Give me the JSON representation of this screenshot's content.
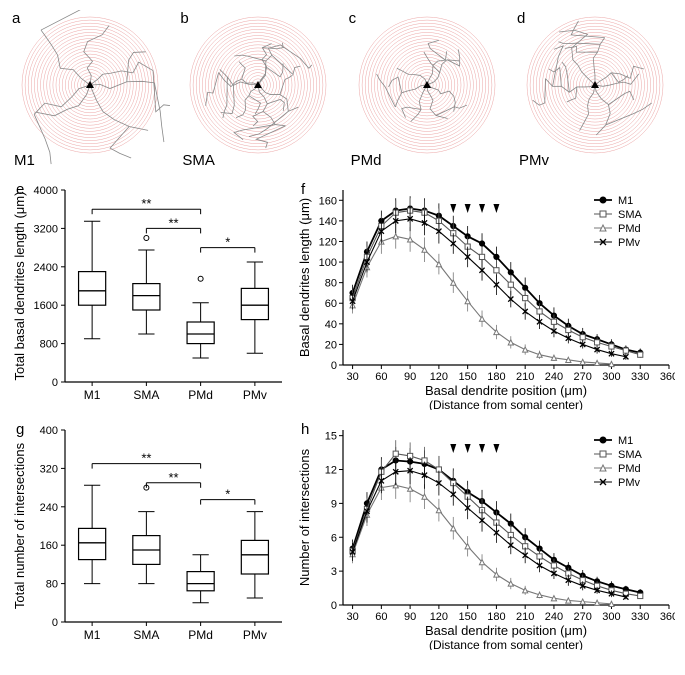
{
  "colors": {
    "background": "#ffffff",
    "sholl_circle": "#f4b5b5",
    "sholl_circle_stroke": "#e99a9a",
    "dendrite": "#888888",
    "soma": "#000000",
    "axis": "#000000",
    "box_stroke": "#000000",
    "outlier": "#000000",
    "sig_bar": "#000000",
    "series": {
      "M1": "#000000",
      "SMA": "#555555",
      "PMd": "#777777",
      "PMv": "#000000"
    }
  },
  "top_panels": [
    {
      "letter": "a",
      "label": "M1",
      "n_rings": 22,
      "dendrite_reach": 0.95
    },
    {
      "letter": "b",
      "label": "SMA",
      "n_rings": 22,
      "dendrite_reach": 0.65
    },
    {
      "letter": "c",
      "label": "PMd",
      "n_rings": 22,
      "dendrite_reach": 0.55
    },
    {
      "letter": "d",
      "label": "PMv",
      "n_rings": 22,
      "dendrite_reach": 0.7
    }
  ],
  "boxplot_e": {
    "letter": "e",
    "ylabel": "Total basal dendrites length (μm)",
    "ylim": [
      0,
      4000
    ],
    "yticks": [
      0,
      800,
      1600,
      2400,
      3200,
      4000
    ],
    "categories": [
      "M1",
      "SMA",
      "PMd",
      "PMv"
    ],
    "boxes": [
      {
        "q1": 1600,
        "median": 1900,
        "q3": 2300,
        "whisker_lo": 900,
        "whisker_hi": 3350,
        "outliers": []
      },
      {
        "q1": 1500,
        "median": 1800,
        "q3": 2050,
        "whisker_lo": 1000,
        "whisker_hi": 2750,
        "outliers": [
          3000
        ]
      },
      {
        "q1": 800,
        "median": 1000,
        "q3": 1250,
        "whisker_lo": 500,
        "whisker_hi": 1650,
        "outliers": [
          2150
        ]
      },
      {
        "q1": 1300,
        "median": 1600,
        "q3": 1950,
        "whisker_lo": 600,
        "whisker_hi": 2500,
        "outliers": []
      }
    ],
    "sig": [
      {
        "i": 0,
        "j": 2,
        "y": 3600,
        "label": "**"
      },
      {
        "i": 1,
        "j": 2,
        "y": 3200,
        "label": "**"
      },
      {
        "i": 2,
        "j": 3,
        "y": 2800,
        "label": "*"
      }
    ]
  },
  "boxplot_g": {
    "letter": "g",
    "ylabel": "Total number of intersections",
    "ylim": [
      0,
      400
    ],
    "yticks": [
      0,
      80,
      160,
      240,
      320,
      400
    ],
    "categories": [
      "M1",
      "SMA",
      "PMd",
      "PMv"
    ],
    "boxes": [
      {
        "q1": 130,
        "median": 165,
        "q3": 195,
        "whisker_lo": 80,
        "whisker_hi": 285,
        "outliers": []
      },
      {
        "q1": 120,
        "median": 150,
        "q3": 180,
        "whisker_lo": 80,
        "whisker_hi": 230,
        "outliers": [
          280
        ]
      },
      {
        "q1": 65,
        "median": 80,
        "q3": 105,
        "whisker_lo": 40,
        "whisker_hi": 140,
        "outliers": []
      },
      {
        "q1": 100,
        "median": 140,
        "q3": 170,
        "whisker_lo": 50,
        "whisker_hi": 230,
        "outliers": []
      }
    ],
    "sig": [
      {
        "i": 0,
        "j": 2,
        "y": 330,
        "label": "**"
      },
      {
        "i": 1,
        "j": 2,
        "y": 290,
        "label": "**"
      },
      {
        "i": 2,
        "j": 3,
        "y": 255,
        "label": "*"
      }
    ]
  },
  "line_f": {
    "letter": "f",
    "ylabel": "Basal dendrites length (μm)",
    "xlabel1": "Basal dendrite position (μm)",
    "xlabel2": "(Distance from somal center)",
    "xlim": [
      20,
      360
    ],
    "xticks": [
      30,
      60,
      90,
      120,
      150,
      180,
      210,
      240,
      270,
      300,
      330,
      360
    ],
    "ylim": [
      0,
      170
    ],
    "yticks": [
      0,
      20,
      40,
      60,
      80,
      100,
      120,
      140,
      160
    ],
    "arrows_x": [
      135,
      150,
      165,
      180
    ],
    "legend": [
      "M1",
      "SMA",
      "PMd",
      "PMv"
    ],
    "series": {
      "M1": {
        "x": [
          30,
          45,
          60,
          75,
          90,
          105,
          120,
          135,
          150,
          165,
          180,
          195,
          210,
          225,
          240,
          255,
          270,
          285,
          300,
          315,
          330
        ],
        "y": [
          70,
          110,
          140,
          150,
          152,
          150,
          145,
          135,
          125,
          118,
          105,
          90,
          75,
          60,
          48,
          38,
          30,
          25,
          20,
          15,
          12
        ],
        "err": [
          8,
          10,
          10,
          12,
          12,
          12,
          12,
          10,
          10,
          10,
          10,
          10,
          10,
          8,
          8,
          7,
          6,
          5,
          5,
          4,
          4
        ]
      },
      "SMA": {
        "x": [
          30,
          45,
          60,
          75,
          90,
          105,
          120,
          135,
          150,
          165,
          180,
          195,
          210,
          225,
          240,
          255,
          270,
          285,
          300,
          315,
          330
        ],
        "y": [
          65,
          105,
          135,
          148,
          150,
          148,
          140,
          128,
          115,
          105,
          92,
          78,
          65,
          52,
          42,
          34,
          27,
          22,
          18,
          14,
          10
        ],
        "err": [
          8,
          10,
          10,
          12,
          12,
          12,
          12,
          10,
          10,
          10,
          10,
          10,
          8,
          8,
          7,
          6,
          5,
          5,
          4,
          4,
          3
        ]
      },
      "PMd": {
        "x": [
          30,
          45,
          60,
          75,
          90,
          105,
          120,
          135,
          150,
          165,
          180,
          195,
          210,
          225,
          240,
          255,
          270,
          285,
          300
        ],
        "y": [
          58,
          95,
          120,
          125,
          122,
          112,
          98,
          80,
          62,
          45,
          32,
          22,
          15,
          10,
          7,
          5,
          3,
          2,
          1
        ],
        "err": [
          8,
          10,
          12,
          12,
          12,
          12,
          10,
          10,
          10,
          8,
          7,
          6,
          5,
          4,
          3,
          2,
          2,
          2,
          1
        ]
      },
      "PMv": {
        "x": [
          30,
          45,
          60,
          75,
          90,
          105,
          120,
          135,
          150,
          165,
          180,
          195,
          210,
          225,
          240,
          255,
          270,
          285,
          300,
          315
        ],
        "y": [
          62,
          100,
          130,
          140,
          142,
          138,
          130,
          118,
          105,
          92,
          78,
          64,
          52,
          42,
          33,
          26,
          20,
          15,
          11,
          8
        ],
        "err": [
          8,
          10,
          12,
          12,
          12,
          12,
          12,
          10,
          10,
          10,
          10,
          8,
          8,
          7,
          6,
          5,
          4,
          4,
          3,
          3
        ]
      }
    }
  },
  "line_h": {
    "letter": "h",
    "ylabel": "Number of intersections",
    "xlabel1": "Basal dendrite position (μm)",
    "xlabel2": "(Distance from somal center)",
    "xlim": [
      20,
      360
    ],
    "xticks": [
      30,
      60,
      90,
      120,
      150,
      180,
      210,
      240,
      270,
      300,
      330,
      360
    ],
    "ylim": [
      0,
      15.5
    ],
    "yticks": [
      0,
      3,
      6,
      9,
      12,
      15
    ],
    "arrows_x": [
      135,
      150,
      165,
      180
    ],
    "legend": [
      "M1",
      "SMA",
      "PMd",
      "PMv"
    ],
    "series": {
      "M1": {
        "x": [
          30,
          45,
          60,
          75,
          90,
          105,
          120,
          135,
          150,
          165,
          180,
          195,
          210,
          225,
          240,
          255,
          270,
          285,
          300,
          315,
          330
        ],
        "y": [
          5,
          9,
          12,
          12.8,
          12.7,
          12.5,
          12,
          11,
          10,
          9.2,
          8.2,
          7.2,
          6,
          5,
          4,
          3.3,
          2.6,
          2.1,
          1.7,
          1.4,
          1.1
        ],
        "err": [
          0.8,
          1,
          1.1,
          1.2,
          1.2,
          1.2,
          1.2,
          1.1,
          1,
          1,
          1,
          0.9,
          0.8,
          0.7,
          0.6,
          0.5,
          0.5,
          0.4,
          0.4,
          0.3,
          0.3
        ]
      },
      "SMA": {
        "x": [
          30,
          45,
          60,
          75,
          90,
          105,
          120,
          135,
          150,
          165,
          180,
          195,
          210,
          225,
          240,
          255,
          270,
          285,
          300,
          315,
          330
        ],
        "y": [
          4.8,
          8.5,
          11.8,
          13.4,
          13.2,
          12.8,
          12,
          10.8,
          9.6,
          8.4,
          7.3,
          6.2,
          5.2,
          4.3,
          3.5,
          2.8,
          2.2,
          1.7,
          1.3,
          1,
          0.8
        ],
        "err": [
          0.8,
          1,
          1.1,
          1.2,
          1.2,
          1.2,
          1.2,
          1.1,
          1,
          1,
          1,
          0.9,
          0.8,
          0.7,
          0.6,
          0.5,
          0.5,
          0.4,
          0.3,
          0.3,
          0.2
        ]
      },
      "PMd": {
        "x": [
          30,
          45,
          60,
          75,
          90,
          105,
          120,
          135,
          150,
          165,
          180,
          195,
          210,
          225,
          240,
          255,
          270,
          285,
          300
        ],
        "y": [
          4.5,
          8,
          10.4,
          10.6,
          10.3,
          9.6,
          8.4,
          6.8,
          5.2,
          3.8,
          2.7,
          1.9,
          1.3,
          0.9,
          0.6,
          0.4,
          0.3,
          0.2,
          0.1
        ],
        "err": [
          0.8,
          1,
          1.1,
          1.2,
          1.2,
          1.1,
          1,
          1,
          0.9,
          0.7,
          0.6,
          0.5,
          0.4,
          0.3,
          0.2,
          0.2,
          0.1,
          0.1,
          0.1
        ]
      },
      "PMv": {
        "x": [
          30,
          45,
          60,
          75,
          90,
          105,
          120,
          135,
          150,
          165,
          180,
          195,
          210,
          225,
          240,
          255,
          270,
          285,
          300,
          315
        ],
        "y": [
          4.7,
          8.3,
          11,
          11.8,
          11.9,
          11.5,
          10.8,
          9.8,
          8.6,
          7.5,
          6.4,
          5.3,
          4.4,
          3.5,
          2.8,
          2.2,
          1.7,
          1.3,
          1,
          0.7
        ],
        "err": [
          0.8,
          1,
          1.1,
          1.2,
          1.2,
          1.2,
          1.1,
          1,
          1,
          1,
          0.9,
          0.8,
          0.7,
          0.6,
          0.5,
          0.5,
          0.4,
          0.3,
          0.3,
          0.2
        ]
      }
    }
  },
  "markers": {
    "M1": {
      "shape": "circle",
      "fill": "#000000",
      "stroke": "#000000"
    },
    "SMA": {
      "shape": "square",
      "fill": "#ffffff",
      "stroke": "#555555"
    },
    "PMd": {
      "shape": "triangle",
      "fill": "#ffffff",
      "stroke": "#777777"
    },
    "PMv": {
      "shape": "x",
      "fill": "none",
      "stroke": "#000000"
    }
  }
}
